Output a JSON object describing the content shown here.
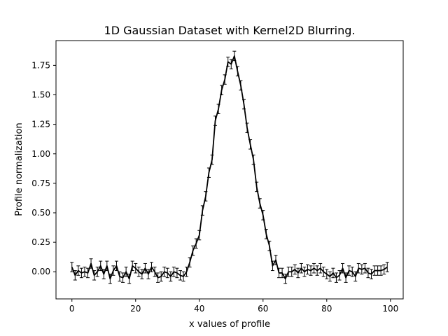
{
  "chart_data": {
    "type": "line",
    "title": "1D Gaussian Dataset with Kernel2D Blurring.",
    "xlabel": "x values of profile",
    "ylabel": "Profile normalization",
    "xlim": [
      -5,
      104
    ],
    "ylim": [
      -0.23,
      1.96
    ],
    "grid": false,
    "legend": "none",
    "x_ticks": [
      0,
      20,
      40,
      60,
      80,
      100
    ],
    "x_tick_labels": [
      "0",
      "20",
      "40",
      "60",
      "80",
      "100"
    ],
    "y_ticks": [
      0.0,
      0.25,
      0.5,
      0.75,
      1.0,
      1.25,
      1.5,
      1.75
    ],
    "y_tick_labels": [
      "0.00",
      "0.25",
      "0.50",
      "0.75",
      "1.00",
      "1.25",
      "1.50",
      "1.75"
    ],
    "series": [
      {
        "color": "#000000",
        "error": 0.04,
        "x": [
          0,
          1,
          2,
          3,
          4,
          5,
          6,
          7,
          8,
          9,
          10,
          11,
          12,
          13,
          14,
          15,
          16,
          17,
          18,
          19,
          20,
          21,
          22,
          23,
          24,
          25,
          26,
          27,
          28,
          29,
          30,
          31,
          32,
          33,
          34,
          35,
          36,
          37,
          38,
          39,
          40,
          41,
          42,
          43,
          44,
          45,
          46,
          47,
          48,
          49,
          50,
          51,
          52,
          53,
          54,
          55,
          56,
          57,
          58,
          59,
          60,
          61,
          62,
          63,
          64,
          65,
          66,
          67,
          68,
          69,
          70,
          71,
          72,
          73,
          74,
          75,
          76,
          77,
          78,
          79,
          80,
          81,
          82,
          83,
          84,
          85,
          86,
          87,
          88,
          89,
          90,
          91,
          92,
          93,
          94,
          95,
          96,
          97,
          98,
          99
        ],
        "values": [
          0.04,
          -0.03,
          0.01,
          -0.01,
          0.0,
          -0.01,
          0.07,
          -0.03,
          0.0,
          0.05,
          -0.02,
          0.05,
          -0.06,
          0.01,
          0.05,
          -0.04,
          -0.05,
          0.0,
          -0.06,
          0.05,
          0.03,
          0.0,
          -0.02,
          0.03,
          -0.02,
          0.04,
          0.0,
          -0.05,
          -0.04,
          0.0,
          -0.01,
          -0.04,
          0.0,
          -0.01,
          -0.03,
          -0.04,
          0.0,
          0.08,
          0.18,
          0.24,
          0.31,
          0.52,
          0.64,
          0.84,
          0.95,
          1.28,
          1.38,
          1.54,
          1.63,
          1.78,
          1.76,
          1.83,
          1.7,
          1.58,
          1.42,
          1.22,
          1.08,
          0.95,
          0.72,
          0.58,
          0.48,
          0.32,
          0.22,
          0.05,
          0.1,
          -0.01,
          -0.01,
          -0.06,
          0.0,
          0.0,
          0.02,
          -0.01,
          0.03,
          0.0,
          0.02,
          0.01,
          0.03,
          0.01,
          0.03,
          0.0,
          -0.02,
          -0.04,
          -0.01,
          -0.05,
          -0.03,
          0.03,
          -0.05,
          0.01,
          0.0,
          -0.04,
          0.03,
          0.02,
          0.03,
          -0.01,
          -0.02,
          0.01,
          0.01,
          0.01,
          0.02,
          0.04
        ]
      }
    ]
  }
}
